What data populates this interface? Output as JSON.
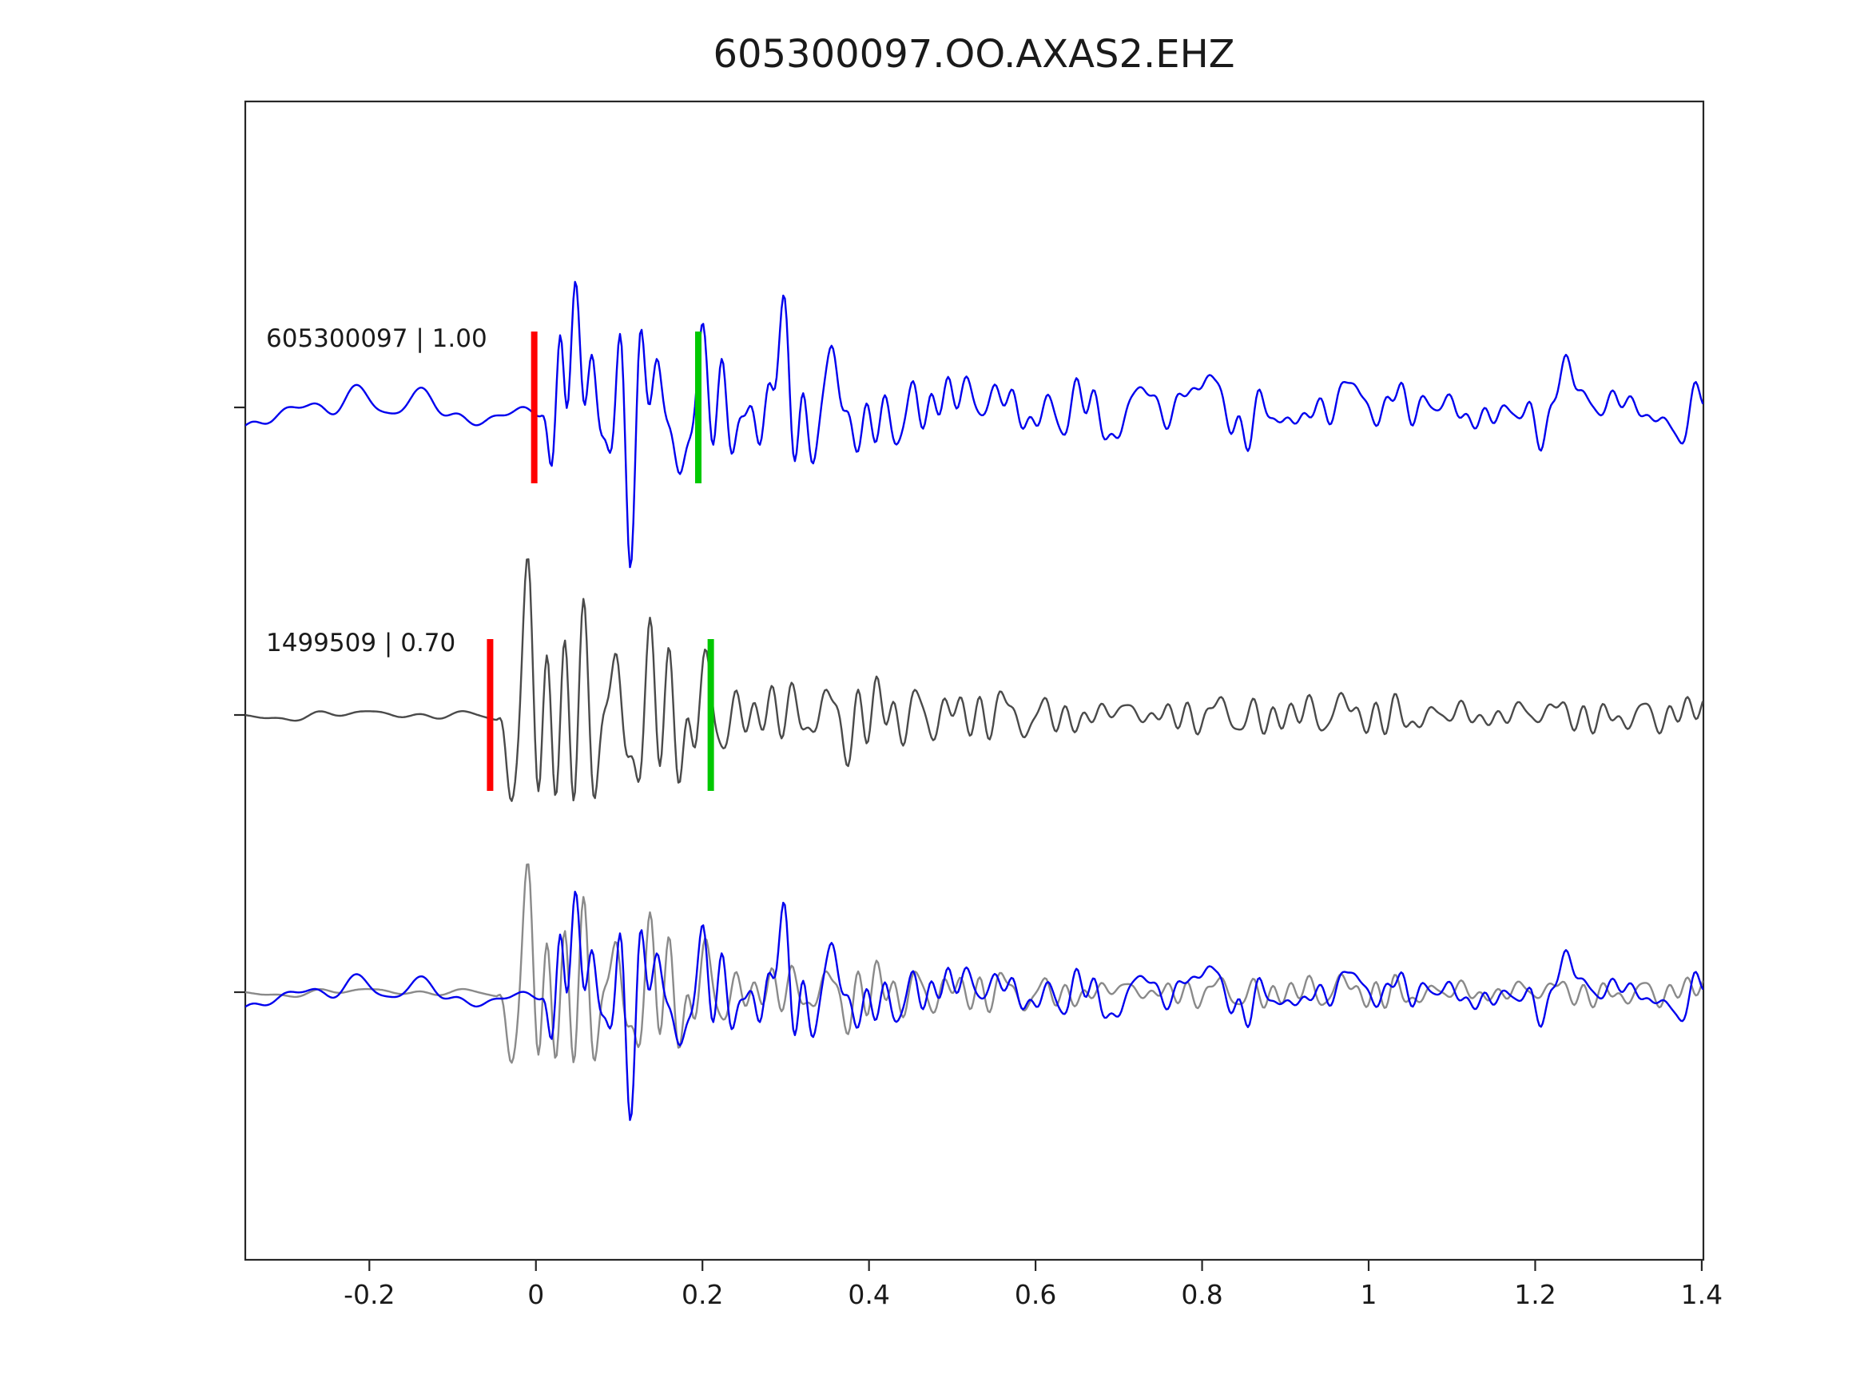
{
  "figure": {
    "title": "605300097.OO.AXAS2.EHZ"
  },
  "chart_data": {
    "type": "line",
    "title": "605300097.OO.AXAS2.EHZ",
    "xlabel": "",
    "ylabel": "",
    "xlim": [
      -0.349,
      1.402
    ],
    "grid": false,
    "legend": "none",
    "xticks": {
      "values": [
        -0.2,
        0,
        0.2,
        0.4,
        0.6,
        0.8,
        1,
        1.2,
        1.4
      ],
      "labels": [
        "-0.2",
        "0",
        "0.2",
        "0.4",
        "0.6",
        "0.8",
        "1",
        "1.2",
        "1.4"
      ]
    },
    "colors": {
      "template": "#0000ee",
      "detection": "#4a4a4a",
      "overlay_detection": "#8a8a8a",
      "pick_red": "#ff0000",
      "pick_green": "#00c800",
      "axis": "#262626"
    },
    "traces": [
      {
        "key": "template",
        "id": "605300097",
        "correlation": "1.00",
        "label": "605300097 | 1.00",
        "color_ref": "template",
        "onset": 0.005,
        "noise_level": 0.1,
        "seed": 20250,
        "picks": [
          {
            "type": "red-pick",
            "time": -0.002,
            "color_ref": "pick_red"
          },
          {
            "type": "green-pick",
            "time": 0.195,
            "color_ref": "pick_green"
          }
        ]
      },
      {
        "key": "detection",
        "id": "1499509",
        "correlation": "0.70",
        "label": "1499509 | 0.70",
        "color_ref": "detection",
        "onset": -0.048,
        "noise_level": 0.03,
        "seed": 777,
        "picks": [
          {
            "type": "red-pick",
            "time": -0.055,
            "color_ref": "pick_red"
          },
          {
            "type": "green-pick",
            "time": 0.21,
            "color_ref": "pick_green"
          }
        ]
      }
    ],
    "rows": [
      {
        "name": "template-row",
        "refs": [
          {
            "trace": 0
          }
        ],
        "show_label": true,
        "show_picks": true
      },
      {
        "name": "detection-row",
        "refs": [
          {
            "trace": 1
          }
        ],
        "show_label": true,
        "show_picks": true
      },
      {
        "name": "overlay-row",
        "refs": [
          {
            "trace": 1,
            "color_override": "overlay_detection"
          },
          {
            "trace": 0
          }
        ],
        "show_label": false,
        "show_picks": false
      }
    ],
    "waveform_model": {
      "dt": 0.002,
      "burst_freqs": [
        14,
        21,
        29,
        38,
        52
      ],
      "background_freqs": [
        4,
        7,
        11,
        16,
        23
      ],
      "ramp": 0.035,
      "decay": 3.3,
      "coda_floor_base": 0.1,
      "coda_floor_extra": 0.1,
      "coda_floor_rate": 1.2
    }
  }
}
